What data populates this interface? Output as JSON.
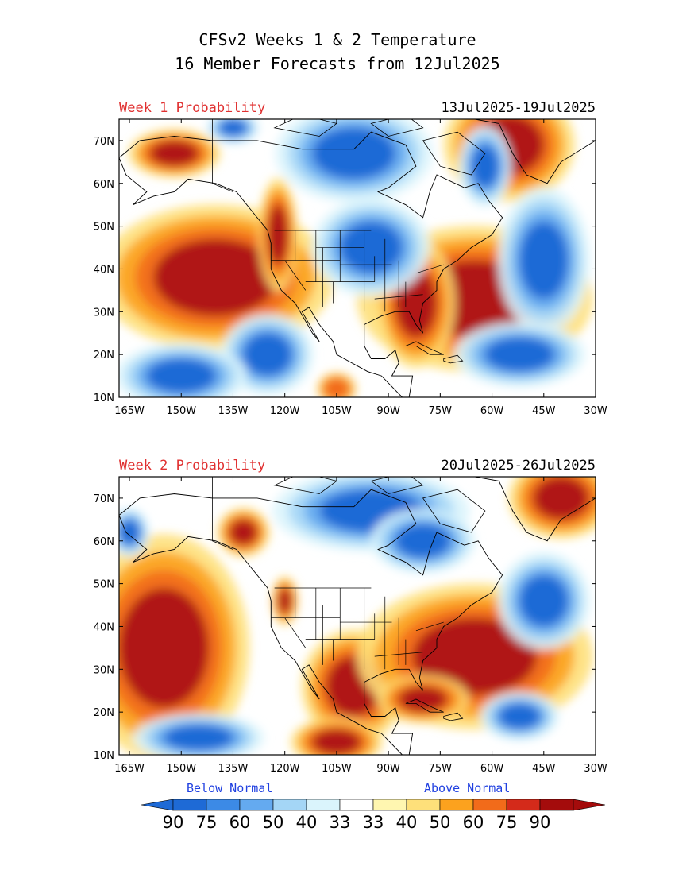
{
  "header": {
    "title_line1": "CFSv2 Weeks 1 & 2 Temperature",
    "title_line2": "16 Member Forecasts from 12Jul2025"
  },
  "panels": [
    {
      "label": "Week 1 Probability",
      "date_range": "13Jul2025-19Jul2025",
      "blobs": [
        {
          "c": "#b01212",
          "lon": -152,
          "lat": 67,
          "rx": 7,
          "ry": 3
        },
        {
          "c": "#b01212",
          "lon": -55,
          "lat": 69,
          "rx": 10,
          "ry": 7
        },
        {
          "c": "#b01212",
          "lon": -140,
          "lat": 38,
          "rx": 18,
          "ry": 9
        },
        {
          "c": "#b01212",
          "lon": -122,
          "lat": 48,
          "rx": 3,
          "ry": 7
        },
        {
          "c": "#b01212",
          "lon": -65,
          "lat": 33,
          "rx": 18,
          "ry": 9
        },
        {
          "c": "#b01212",
          "lon": -82,
          "lat": 32,
          "rx": 6,
          "ry": 8
        },
        {
          "c": "#f26b1a",
          "lon": -105,
          "lat": 12,
          "rx": 3,
          "ry": 2
        },
        {
          "c": "#1e6ad6",
          "lon": -100,
          "lat": 67,
          "rx": 12,
          "ry": 6
        },
        {
          "c": "#1e6ad6",
          "lon": -95,
          "lat": 45,
          "rx": 9,
          "ry": 6
        },
        {
          "c": "#1e6ad6",
          "lon": -62,
          "lat": 64,
          "rx": 4,
          "ry": 5
        },
        {
          "c": "#1e6ad6",
          "lon": -45,
          "lat": 42,
          "rx": 7,
          "ry": 9
        },
        {
          "c": "#1e6ad6",
          "lon": -52,
          "lat": 20,
          "rx": 10,
          "ry": 4
        },
        {
          "c": "#1e6ad6",
          "lon": -125,
          "lat": 20,
          "rx": 7,
          "ry": 5
        },
        {
          "c": "#1e6ad6",
          "lon": -150,
          "lat": 15,
          "rx": 10,
          "ry": 4
        },
        {
          "c": "#1e6ad6",
          "lon": -135,
          "lat": 73,
          "rx": 4,
          "ry": 2
        }
      ]
    },
    {
      "label": "Week 2 Probability",
      "date_range": "20Jul2025-26Jul2025",
      "blobs": [
        {
          "c": "#b01212",
          "lon": -155,
          "lat": 35,
          "rx": 13,
          "ry": 14
        },
        {
          "c": "#b01212",
          "lon": -132,
          "lat": 62,
          "rx": 4,
          "ry": 3
        },
        {
          "c": "#b01212",
          "lon": -100,
          "lat": 26,
          "rx": 8,
          "ry": 7
        },
        {
          "c": "#b01212",
          "lon": -105,
          "lat": 13,
          "rx": 7,
          "ry": 3
        },
        {
          "c": "#b01212",
          "lon": -65,
          "lat": 33,
          "rx": 18,
          "ry": 9
        },
        {
          "c": "#b01212",
          "lon": -80,
          "lat": 23,
          "rx": 7,
          "ry": 3
        },
        {
          "c": "#b01212",
          "lon": -40,
          "lat": 70,
          "rx": 8,
          "ry": 5
        },
        {
          "c": "#b01212",
          "lon": -120,
          "lat": 46,
          "rx": 2,
          "ry": 3
        },
        {
          "c": "#1e6ad6",
          "lon": -95,
          "lat": 67,
          "rx": 15,
          "ry": 5
        },
        {
          "c": "#1e6ad6",
          "lon": -80,
          "lat": 60,
          "rx": 8,
          "ry": 4
        },
        {
          "c": "#1e6ad6",
          "lon": -45,
          "lat": 46,
          "rx": 7,
          "ry": 6
        },
        {
          "c": "#1e6ad6",
          "lon": -52,
          "lat": 19,
          "rx": 6,
          "ry": 3
        },
        {
          "c": "#1e6ad6",
          "lon": -145,
          "lat": 14,
          "rx": 10,
          "ry": 3
        },
        {
          "c": "#1e6ad6",
          "lon": -165,
          "lat": 62,
          "rx": 3,
          "ry": 3
        }
      ]
    }
  ],
  "axes": {
    "lon_ticks": [
      "165W",
      "150W",
      "135W",
      "120W",
      "105W",
      "90W",
      "75W",
      "60W",
      "45W",
      "30W"
    ],
    "lon_values": [
      -165,
      -150,
      -135,
      -120,
      -105,
      -90,
      -75,
      -60,
      -45,
      -30
    ],
    "lat_ticks": [
      "70N",
      "60N",
      "50N",
      "40N",
      "30N",
      "20N",
      "10N"
    ],
    "lat_values": [
      70,
      60,
      50,
      40,
      30,
      20,
      10
    ],
    "lon_range": [
      -168,
      -30
    ],
    "lat_range": [
      10,
      75
    ]
  },
  "legend": {
    "below_label": "Below Normal",
    "above_label": "Above Normal",
    "colors": [
      "#1e6ad6",
      "#3c8ae6",
      "#64aaf0",
      "#a4d6f6",
      "#daf4fc",
      "#ffffff",
      "#fff6b0",
      "#fee07a",
      "#fca21e",
      "#f26b1a",
      "#d42a1a",
      "#a40c0c"
    ],
    "values": [
      "90",
      "75",
      "60",
      "50",
      "40",
      "33",
      "33",
      "40",
      "50",
      "60",
      "75",
      "90"
    ]
  }
}
